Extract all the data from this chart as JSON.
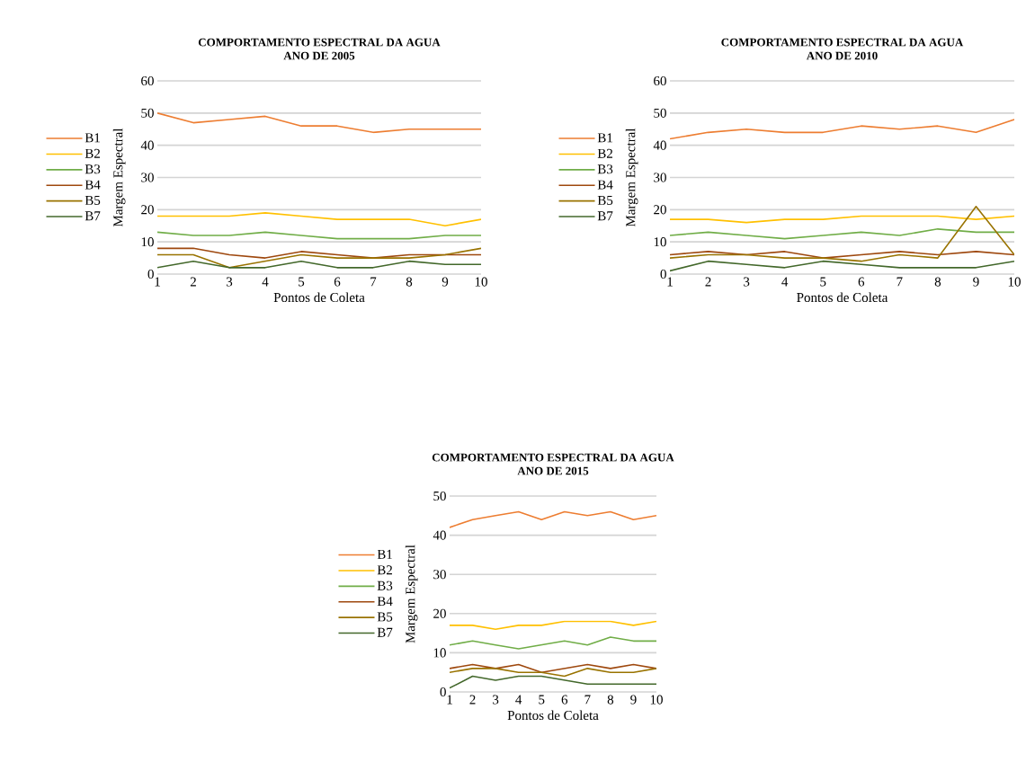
{
  "chart_data": [
    {
      "type": "line",
      "title": "COMPORTAMENTO ESPECTRAL DA AGUA",
      "subtitle": "ANO DE 2005",
      "xlabel": "Pontos de Coleta",
      "ylabel": "Margem Espectral",
      "x": [
        1,
        2,
        3,
        4,
        5,
        6,
        7,
        8,
        9,
        10
      ],
      "xlim": [
        1,
        10
      ],
      "xticks": [
        1,
        2,
        3,
        4,
        5,
        6,
        7,
        8,
        9,
        10
      ],
      "ylim": [
        0,
        60
      ],
      "yticks": [
        0,
        10,
        20,
        30,
        40,
        50,
        60
      ],
      "grid": "y",
      "legend": "left",
      "series": [
        {
          "name": "B1",
          "color": "#ed7d31",
          "values": [
            50,
            47,
            48,
            49,
            46,
            46,
            44,
            45,
            45,
            45
          ]
        },
        {
          "name": "B2",
          "color": "#ffc000",
          "values": [
            18,
            18,
            18,
            19,
            18,
            17,
            17,
            17,
            15,
            17
          ]
        },
        {
          "name": "B3",
          "color": "#70ad47",
          "values": [
            13,
            12,
            12,
            13,
            12,
            11,
            11,
            11,
            12,
            12
          ]
        },
        {
          "name": "B4",
          "color": "#9e480e",
          "values": [
            8,
            8,
            6,
            5,
            7,
            6,
            5,
            6,
            6,
            6
          ]
        },
        {
          "name": "B5",
          "color": "#997300",
          "values": [
            6,
            6,
            2,
            4,
            6,
            5,
            5,
            5,
            6,
            8
          ]
        },
        {
          "name": "B7",
          "color": "#43682b",
          "values": [
            2,
            4,
            2,
            2,
            4,
            2,
            2,
            4,
            3,
            3
          ]
        }
      ]
    },
    {
      "type": "line",
      "title": "COMPORTAMENTO ESPECTRAL DA AGUA",
      "subtitle": "ANO DE 2010",
      "xlabel": "Pontos de Coleta",
      "ylabel": "Margem Espectral",
      "x": [
        1,
        2,
        3,
        4,
        5,
        6,
        7,
        8,
        9,
        10
      ],
      "xlim": [
        1,
        10
      ],
      "xticks": [
        1,
        2,
        3,
        4,
        5,
        6,
        7,
        8,
        9,
        10
      ],
      "ylim": [
        0,
        60
      ],
      "yticks": [
        0,
        10,
        20,
        30,
        40,
        50,
        60
      ],
      "grid": "y",
      "legend": "left",
      "series": [
        {
          "name": "B1",
          "color": "#ed7d31",
          "values": [
            42,
            44,
            45,
            44,
            44,
            46,
            45,
            46,
            44,
            48
          ]
        },
        {
          "name": "B2",
          "color": "#ffc000",
          "values": [
            17,
            17,
            16,
            17,
            17,
            18,
            18,
            18,
            17,
            18
          ]
        },
        {
          "name": "B3",
          "color": "#70ad47",
          "values": [
            12,
            13,
            12,
            11,
            12,
            13,
            12,
            14,
            13,
            13
          ]
        },
        {
          "name": "B4",
          "color": "#9e480e",
          "values": [
            6,
            7,
            6,
            7,
            5,
            6,
            7,
            6,
            7,
            6
          ]
        },
        {
          "name": "B5",
          "color": "#997300",
          "values": [
            5,
            6,
            6,
            5,
            5,
            4,
            6,
            5,
            21,
            6
          ]
        },
        {
          "name": "B7",
          "color": "#43682b",
          "values": [
            1,
            4,
            3,
            2,
            4,
            3,
            2,
            2,
            2,
            4
          ]
        }
      ]
    },
    {
      "type": "line",
      "title": "COMPORTAMENTO ESPECTRAL DA AGUA",
      "subtitle": "ANO DE 2015",
      "xlabel": "Pontos de Coleta",
      "ylabel": "Margem Espectral",
      "x": [
        1,
        2,
        3,
        4,
        5,
        6,
        7,
        8,
        9,
        10
      ],
      "xlim": [
        1,
        10
      ],
      "xticks": [
        1,
        2,
        3,
        4,
        5,
        6,
        7,
        8,
        9,
        10
      ],
      "ylim": [
        0,
        50
      ],
      "yticks": [
        0,
        10,
        20,
        30,
        40,
        50
      ],
      "grid": "y",
      "legend": "left",
      "series": [
        {
          "name": "B1",
          "color": "#ed7d31",
          "values": [
            42,
            44,
            45,
            46,
            44,
            46,
            45,
            46,
            44,
            45
          ]
        },
        {
          "name": "B2",
          "color": "#ffc000",
          "values": [
            17,
            17,
            16,
            17,
            17,
            18,
            18,
            18,
            17,
            18
          ]
        },
        {
          "name": "B3",
          "color": "#70ad47",
          "values": [
            12,
            13,
            12,
            11,
            12,
            13,
            12,
            14,
            13,
            13
          ]
        },
        {
          "name": "B4",
          "color": "#9e480e",
          "values": [
            6,
            7,
            6,
            7,
            5,
            6,
            7,
            6,
            7,
            6
          ]
        },
        {
          "name": "B5",
          "color": "#997300",
          "values": [
            5,
            6,
            6,
            5,
            5,
            4,
            6,
            5,
            5,
            6
          ]
        },
        {
          "name": "B7",
          "color": "#43682b",
          "values": [
            1,
            4,
            3,
            4,
            4,
            3,
            2,
            2,
            2,
            2
          ]
        }
      ]
    }
  ]
}
